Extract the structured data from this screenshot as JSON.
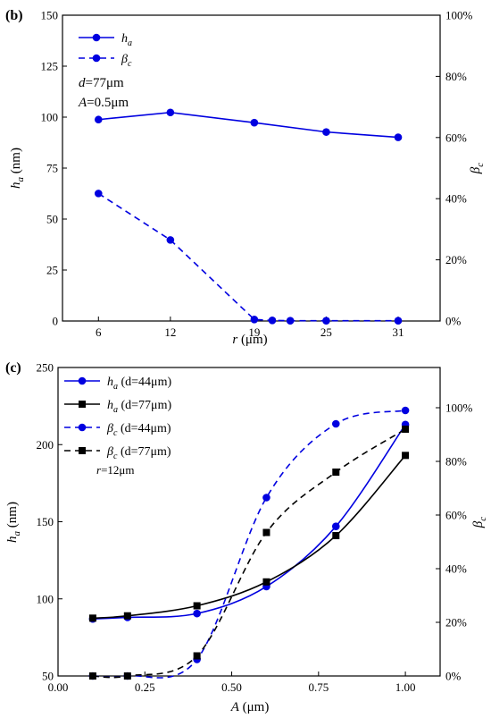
{
  "chart_data": [
    {
      "type": "line",
      "panel_label": "(b)",
      "x": [
        6,
        12,
        19,
        25,
        31
      ],
      "xticks": [
        "6",
        "12",
        "19",
        "25",
        "31"
      ],
      "xlim": [
        3,
        34.5
      ],
      "xlabel_var": "r",
      "xlabel_unit": " (μm)",
      "ylabel_main": "h",
      "ylabel_sub": "a",
      "ylabel_unit": " (nm)",
      "yticks": [
        "0",
        "25",
        "50",
        "75",
        "100",
        "125",
        "150"
      ],
      "ylim": [
        0,
        150
      ],
      "y2label_main": "β",
      "y2label_sub": "c",
      "y2ticks": [
        "0%",
        "20%",
        "40%",
        "60%",
        "80%",
        "100%"
      ],
      "y2lim": [
        0,
        100
      ],
      "legend_position": "top-left",
      "series": [
        {
          "name": "h",
          "name_sub": "a",
          "axis": "left",
          "style": "solid",
          "marker": "circle",
          "color": "#0000e0",
          "x": [
            6,
            12,
            19,
            25,
            31
          ],
          "values": [
            98.8,
            102.3,
            97.3,
            92.7,
            90.1
          ]
        },
        {
          "name": "β",
          "name_sub": "c",
          "axis": "right",
          "style": "dashed",
          "marker": "circle",
          "color": "#0000e0",
          "x": [
            6,
            12,
            19,
            20.5,
            22,
            25,
            31
          ],
          "values": [
            41.7,
            26.5,
            0.5,
            0.2,
            0.1,
            0.1,
            0.1
          ]
        }
      ],
      "annotations": [
        {
          "var": "d",
          "text": "=77μm"
        },
        {
          "var": "A",
          "text": "=0.5μm"
        }
      ]
    },
    {
      "type": "line",
      "panel_label": "(c)",
      "xticks": [
        "0.00",
        "0.25",
        "0.50",
        "0.75",
        "1.00"
      ],
      "xlim": [
        0,
        1.1
      ],
      "xlabel_var": "A",
      "xlabel_unit": " (μm)",
      "ylabel_main": "h",
      "ylabel_sub": "a",
      "ylabel_unit": " (nm)",
      "yticks": [
        "50",
        "100",
        "150",
        "200",
        "250"
      ],
      "ylim": [
        50,
        250
      ],
      "y2label_main": "β",
      "y2label_sub": "c",
      "y2ticks": [
        "0%",
        "20%",
        "40%",
        "60%",
        "80%",
        "100%"
      ],
      "y2lim": [
        0,
        115
      ],
      "legend_position": "top-left",
      "series": [
        {
          "name": "h",
          "name_sub": "a",
          "suffix": " (d=44μm)",
          "axis": "left",
          "style": "solid",
          "marker": "circle",
          "color": "#0000e0",
          "x": [
            0.1,
            0.2,
            0.4,
            0.6,
            0.8,
            1.0
          ],
          "values": [
            87,
            88,
            90.5,
            108,
            147,
            213
          ]
        },
        {
          "name": "h",
          "name_sub": "a",
          "suffix": " (d=77μm)",
          "axis": "left",
          "style": "solid",
          "marker": "square",
          "color": "#000000",
          "x": [
            0.1,
            0.2,
            0.4,
            0.6,
            0.8,
            1.0
          ],
          "values": [
            87.5,
            89,
            95.5,
            111,
            141,
            193
          ]
        },
        {
          "name": "β",
          "name_sub": "c",
          "suffix": " (d=44μm)",
          "axis": "right",
          "style": "dashed",
          "marker": "circle",
          "color": "#0000e0",
          "x": [
            0.1,
            0.2,
            0.4,
            0.6,
            0.8,
            1.0
          ],
          "values": [
            0,
            0,
            6.2,
            66.5,
            94,
            99
          ]
        },
        {
          "name": "β",
          "name_sub": "c",
          "suffix": " (d=77μm)",
          "axis": "right",
          "style": "dashed",
          "marker": "square",
          "color": "#000000",
          "x": [
            0.1,
            0.2,
            0.4,
            0.6,
            0.8,
            1.0
          ],
          "values": [
            0,
            0,
            7.5,
            53.5,
            76,
            92
          ]
        }
      ],
      "annotations": [
        {
          "var": "r",
          "text": "=12μm"
        }
      ]
    }
  ]
}
